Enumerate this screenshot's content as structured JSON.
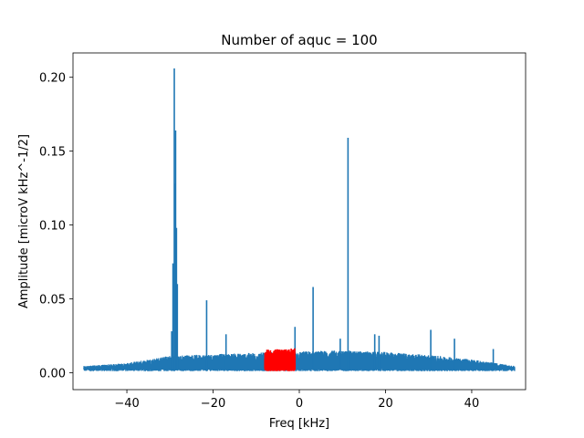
{
  "chart_data": {
    "type": "line",
    "title": "Number of aquc = 100",
    "xlabel": "Freq [kHz]",
    "ylabel": "Amplitude [microV kHz^-1/2]",
    "xlim": [
      -52.5,
      52.5
    ],
    "ylim": [
      -0.0115,
      0.2165
    ],
    "xticks": [
      -40,
      -20,
      0,
      20,
      40
    ],
    "xtick_labels": [
      "−40",
      "−20",
      "0",
      "20",
      "40"
    ],
    "yticks": [
      0.0,
      0.05,
      0.1,
      0.15,
      0.2
    ],
    "ytick_labels": [
      "0.00",
      "0.05",
      "0.10",
      "0.15",
      "0.20"
    ],
    "grid": false,
    "series": [
      {
        "color": "#1f77b4",
        "x_range": [
          -50,
          50
        ],
        "noise_floor": [
          [
            -50,
            0.0045
          ],
          [
            -40,
            0.0065
          ],
          [
            -30,
            0.0115
          ],
          [
            -20,
            0.0125
          ],
          [
            -10,
            0.0135
          ],
          [
            0,
            0.0145
          ],
          [
            10,
            0.015
          ],
          [
            20,
            0.014
          ],
          [
            30,
            0.012
          ],
          [
            40,
            0.009
          ],
          [
            50,
            0.0045
          ]
        ],
        "peaks": [
          {
            "x": -29.0,
            "y": 0.206
          },
          {
            "x": -28.7,
            "y": 0.164
          },
          {
            "x": -28.9,
            "y": 0.128
          },
          {
            "x": -29.3,
            "y": 0.074
          },
          {
            "x": -29.6,
            "y": 0.028
          },
          {
            "x": -28.5,
            "y": 0.098
          },
          {
            "x": -28.3,
            "y": 0.06
          },
          {
            "x": -21.5,
            "y": 0.049
          },
          {
            "x": -17.0,
            "y": 0.026
          },
          {
            "x": -1.0,
            "y": 0.031
          },
          {
            "x": 3.2,
            "y": 0.058
          },
          {
            "x": 11.3,
            "y": 0.159
          },
          {
            "x": 9.5,
            "y": 0.023
          },
          {
            "x": 17.5,
            "y": 0.026
          },
          {
            "x": 18.5,
            "y": 0.025
          },
          {
            "x": 30.5,
            "y": 0.029
          },
          {
            "x": 36.0,
            "y": 0.023
          },
          {
            "x": 45.0,
            "y": 0.016
          }
        ]
      },
      {
        "color": "#ff0000",
        "x_range": [
          -8,
          -1
        ],
        "noise_floor": [
          [
            -8,
            0.0155
          ],
          [
            -1,
            0.0165
          ]
        ],
        "peaks": []
      }
    ]
  }
}
